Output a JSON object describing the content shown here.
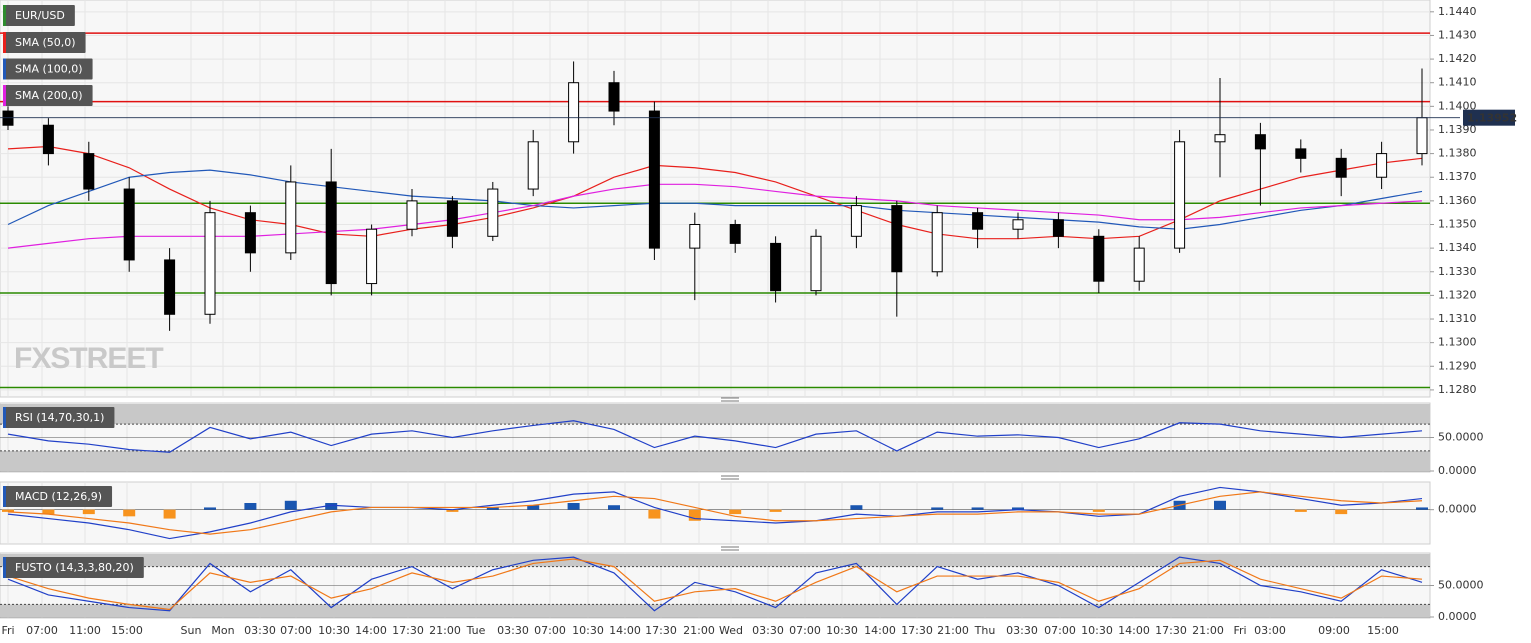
{
  "watermark": "FXSTREET",
  "chart_data": [
    {
      "type": "candlestick",
      "title": "EUR/USD",
      "title_color": "#2e8b2e",
      "up_color": "#ffffff",
      "down_color": "#000000",
      "ylim": [
        1.1277,
        1.1445
      ],
      "yticks": [
        {
          "value": 1.128,
          "label": "1.1280"
        },
        {
          "value": 1.129,
          "label": "1.1290"
        },
        {
          "value": 1.13,
          "label": "1.1300"
        },
        {
          "value": 1.131,
          "label": "1.1310"
        },
        {
          "value": 1.132,
          "label": "1.1320"
        },
        {
          "value": 1.133,
          "label": "1.1330"
        },
        {
          "value": 1.134,
          "label": "1.1340"
        },
        {
          "value": 1.135,
          "label": "1.1350"
        },
        {
          "value": 1.136,
          "label": "1.1360"
        },
        {
          "value": 1.137,
          "label": "1.1370"
        },
        {
          "value": 1.138,
          "label": "1.1380"
        },
        {
          "value": 1.139,
          "label": "1.1390"
        },
        {
          "value": 1.14,
          "label": "1.1400"
        },
        {
          "value": 1.141,
          "label": "1.1410"
        },
        {
          "value": 1.142,
          "label": "1.1420"
        },
        {
          "value": 1.143,
          "label": "1.1430"
        },
        {
          "value": 1.144,
          "label": "1.1440"
        }
      ],
      "grid": true,
      "x_labels": [
        "Fri",
        "07:00",
        "11:00",
        "15:00",
        "Sun",
        "Mon",
        "03:30",
        "07:00",
        "10:30",
        "14:00",
        "17:30",
        "21:00",
        "Tue",
        "03:30",
        "07:00",
        "10:30",
        "14:00",
        "17:30",
        "21:00",
        "Wed",
        "03:30",
        "07:00",
        "10:30",
        "14:00",
        "17:30",
        "21:00",
        "Thu",
        "03:30",
        "07:00",
        "10:30",
        "14:00",
        "17:30",
        "21:00",
        "Fri",
        "03:00",
        "09:00",
        "15:00"
      ],
      "open": [
        1.1398,
        1.1392,
        1.138,
        1.1365,
        1.1335,
        1.1312,
        1.1355,
        1.1338,
        1.1368,
        1.1325,
        1.1348,
        1.136,
        1.1345,
        1.1365,
        1.1385,
        1.141,
        1.1398,
        1.134,
        1.135,
        1.1342,
        1.1322,
        1.1345,
        1.1358,
        1.133,
        1.1355,
        1.1348,
        1.1352,
        1.1345,
        1.1326,
        1.134,
        1.1385,
        1.1388,
        1.1382,
        1.1378,
        1.137,
        1.138
      ],
      "high": [
        1.14,
        1.1395,
        1.1385,
        1.137,
        1.134,
        1.136,
        1.1358,
        1.1375,
        1.1382,
        1.135,
        1.1365,
        1.1362,
        1.1368,
        1.139,
        1.1419,
        1.1415,
        1.1402,
        1.1355,
        1.1352,
        1.1345,
        1.1348,
        1.1362,
        1.136,
        1.1358,
        1.1357,
        1.1355,
        1.1355,
        1.1348,
        1.1345,
        1.139,
        1.1412,
        1.1393,
        1.1386,
        1.1382,
        1.1385,
        1.1416
      ],
      "low": [
        1.139,
        1.1375,
        1.136,
        1.133,
        1.1305,
        1.1308,
        1.133,
        1.1335,
        1.132,
        1.132,
        1.1345,
        1.134,
        1.1343,
        1.1362,
        1.138,
        1.1392,
        1.1335,
        1.1318,
        1.1338,
        1.1317,
        1.132,
        1.134,
        1.1311,
        1.1328,
        1.134,
        1.1344,
        1.134,
        1.1321,
        1.1322,
        1.1338,
        1.137,
        1.1358,
        1.1372,
        1.1362,
        1.1365,
        1.1375
      ],
      "close": [
        1.1392,
        1.138,
        1.1365,
        1.1335,
        1.1312,
        1.1355,
        1.1338,
        1.1368,
        1.1325,
        1.1348,
        1.136,
        1.1345,
        1.1365,
        1.1385,
        1.141,
        1.1398,
        1.134,
        1.135,
        1.1342,
        1.1322,
        1.1345,
        1.1358,
        1.133,
        1.1355,
        1.1348,
        1.1352,
        1.1345,
        1.1326,
        1.134,
        1.1385,
        1.1388,
        1.1382,
        1.1378,
        1.137,
        1.138,
        1.13952
      ],
      "last_price": 1.13952,
      "levels": [
        {
          "value": 1.1431,
          "color": "#e01010"
        },
        {
          "value": 1.1402,
          "color": "#e01010"
        },
        {
          "value": 1.1359,
          "color": "#2a8a00"
        },
        {
          "value": 1.1321,
          "color": "#2a8a00"
        },
        {
          "value": 1.1281,
          "color": "#2a8a00"
        }
      ],
      "series": [
        {
          "name": "SMA (50,0)",
          "color": "#e8201c",
          "style": "line",
          "values": [
            1.1382,
            1.1383,
            1.138,
            1.1374,
            1.1365,
            1.1357,
            1.1352,
            1.135,
            1.1346,
            1.1345,
            1.1348,
            1.135,
            1.1353,
            1.1357,
            1.1362,
            1.137,
            1.1375,
            1.1374,
            1.1372,
            1.1368,
            1.1362,
            1.1356,
            1.135,
            1.1346,
            1.1344,
            1.1344,
            1.1345,
            1.1344,
            1.1345,
            1.1352,
            1.136,
            1.1365,
            1.137,
            1.1373,
            1.1376,
            1.1378
          ]
        },
        {
          "name": "SMA (100,0)",
          "color": "#2158b8",
          "style": "line",
          "values": [
            1.135,
            1.1358,
            1.1364,
            1.137,
            1.1372,
            1.1373,
            1.1371,
            1.1368,
            1.1366,
            1.1364,
            1.1362,
            1.1361,
            1.136,
            1.1358,
            1.1357,
            1.1358,
            1.1359,
            1.1359,
            1.1358,
            1.1358,
            1.1358,
            1.1358,
            1.1356,
            1.1355,
            1.1354,
            1.1353,
            1.1352,
            1.1351,
            1.1349,
            1.1348,
            1.135,
            1.1353,
            1.1356,
            1.1358,
            1.1361,
            1.1364
          ]
        },
        {
          "name": "SMA (200,0)",
          "color": "#e020e0",
          "style": "line",
          "values": [
            1.134,
            1.1342,
            1.1344,
            1.1345,
            1.1345,
            1.1345,
            1.1345,
            1.1346,
            1.1347,
            1.1348,
            1.135,
            1.1352,
            1.1355,
            1.1358,
            1.1362,
            1.1365,
            1.1367,
            1.1367,
            1.1366,
            1.1364,
            1.1362,
            1.1361,
            1.136,
            1.1358,
            1.1357,
            1.1356,
            1.1355,
            1.1354,
            1.1352,
            1.1352,
            1.1353,
            1.1355,
            1.1357,
            1.1358,
            1.1359,
            1.136
          ]
        }
      ]
    },
    {
      "type": "line",
      "title": "RSI (14,70,30,1)",
      "ylim": [
        0,
        100
      ],
      "yticks": [
        {
          "value": 0,
          "label": "0.0000"
        },
        {
          "value": 50,
          "label": "50.0000"
        }
      ],
      "bands": [
        30,
        70
      ],
      "series": [
        {
          "color": "#2140c8",
          "style": "line",
          "values": [
            55,
            45,
            40,
            32,
            28,
            65,
            48,
            58,
            38,
            55,
            60,
            50,
            60,
            68,
            75,
            62,
            35,
            52,
            45,
            35,
            55,
            60,
            30,
            58,
            52,
            54,
            50,
            35,
            48,
            72,
            70,
            60,
            55,
            50,
            55,
            60
          ]
        }
      ]
    },
    {
      "type": "bar",
      "title": "MACD (12,26,9)",
      "ylim": [
        -0.0015,
        0.0012
      ],
      "yticks": [
        {
          "value": 0,
          "label": "0.0000"
        }
      ],
      "series": [
        {
          "style": "bar",
          "color": "#1a56b0",
          "negative_color": "#f7931e",
          "values": [
            -0.0001,
            -0.0002,
            -0.0002,
            -0.0003,
            -0.0004,
            0.0001,
            0.0003,
            0.0004,
            0.0003,
            0,
            0,
            -0.0001,
            0.0001,
            0.0002,
            0.0003,
            0.0002,
            -0.0004,
            -0.0005,
            -0.0002,
            -0.0001,
            0,
            0.0002,
            0,
            0.0001,
            0.0001,
            0.0001,
            0,
            -0.0001,
            0,
            0.0004,
            0.0004,
            0,
            -0.0001,
            -0.0002,
            0,
            0.0001
          ]
        },
        {
          "style": "line",
          "color": "#2140c8",
          "values": [
            -0.0002,
            -0.0004,
            -0.0006,
            -0.0009,
            -0.0013,
            -0.001,
            -0.0006,
            -0.0001,
            0.0002,
            0.0001,
            0.0001,
            0,
            0.0002,
            0.0004,
            0.0007,
            0.0008,
            0.0001,
            -0.0004,
            -0.0005,
            -0.0006,
            -0.0005,
            -0.0002,
            -0.0003,
            -0.0001,
            -0.0001,
            0,
            -0.0001,
            -0.0003,
            -0.0002,
            0.0006,
            0.001,
            0.0008,
            0.0005,
            0.0002,
            0.0003,
            0.0005
          ]
        },
        {
          "style": "line",
          "color": "#f07818",
          "values": [
            -0.0001,
            -0.0002,
            -0.0004,
            -0.0006,
            -0.0009,
            -0.0011,
            -0.0009,
            -0.0005,
            -0.0001,
            0.0001,
            0.0001,
            0.0001,
            0.0001,
            0.0002,
            0.0004,
            0.0006,
            0.0005,
            0.0001,
            -0.0003,
            -0.0005,
            -0.0005,
            -0.0004,
            -0.0003,
            -0.0002,
            -0.0002,
            -0.0001,
            -0.0001,
            -0.0002,
            -0.0002,
            0.0002,
            0.0006,
            0.0008,
            0.0006,
            0.0004,
            0.0003,
            0.0004
          ]
        }
      ]
    },
    {
      "type": "line",
      "title": "FUSTO (14,3,3,80,20)",
      "ylim": [
        0,
        100
      ],
      "yticks": [
        {
          "value": 0,
          "label": "0.0000"
        },
        {
          "value": 50,
          "label": "50.0000"
        }
      ],
      "bands": [
        20,
        80
      ],
      "series": [
        {
          "style": "line",
          "color": "#2140c8",
          "values": [
            60,
            35,
            25,
            15,
            10,
            85,
            40,
            75,
            15,
            60,
            80,
            45,
            75,
            90,
            95,
            70,
            10,
            55,
            40,
            15,
            70,
            85,
            20,
            80,
            60,
            70,
            50,
            15,
            55,
            95,
            85,
            50,
            40,
            25,
            75,
            55
          ]
        },
        {
          "style": "line",
          "color": "#f07818",
          "values": [
            65,
            45,
            30,
            20,
            12,
            70,
            55,
            65,
            30,
            45,
            70,
            55,
            65,
            85,
            92,
            80,
            25,
            40,
            45,
            25,
            55,
            80,
            40,
            65,
            65,
            65,
            55,
            25,
            45,
            85,
            90,
            60,
            45,
            30,
            65,
            60
          ]
        }
      ]
    }
  ]
}
